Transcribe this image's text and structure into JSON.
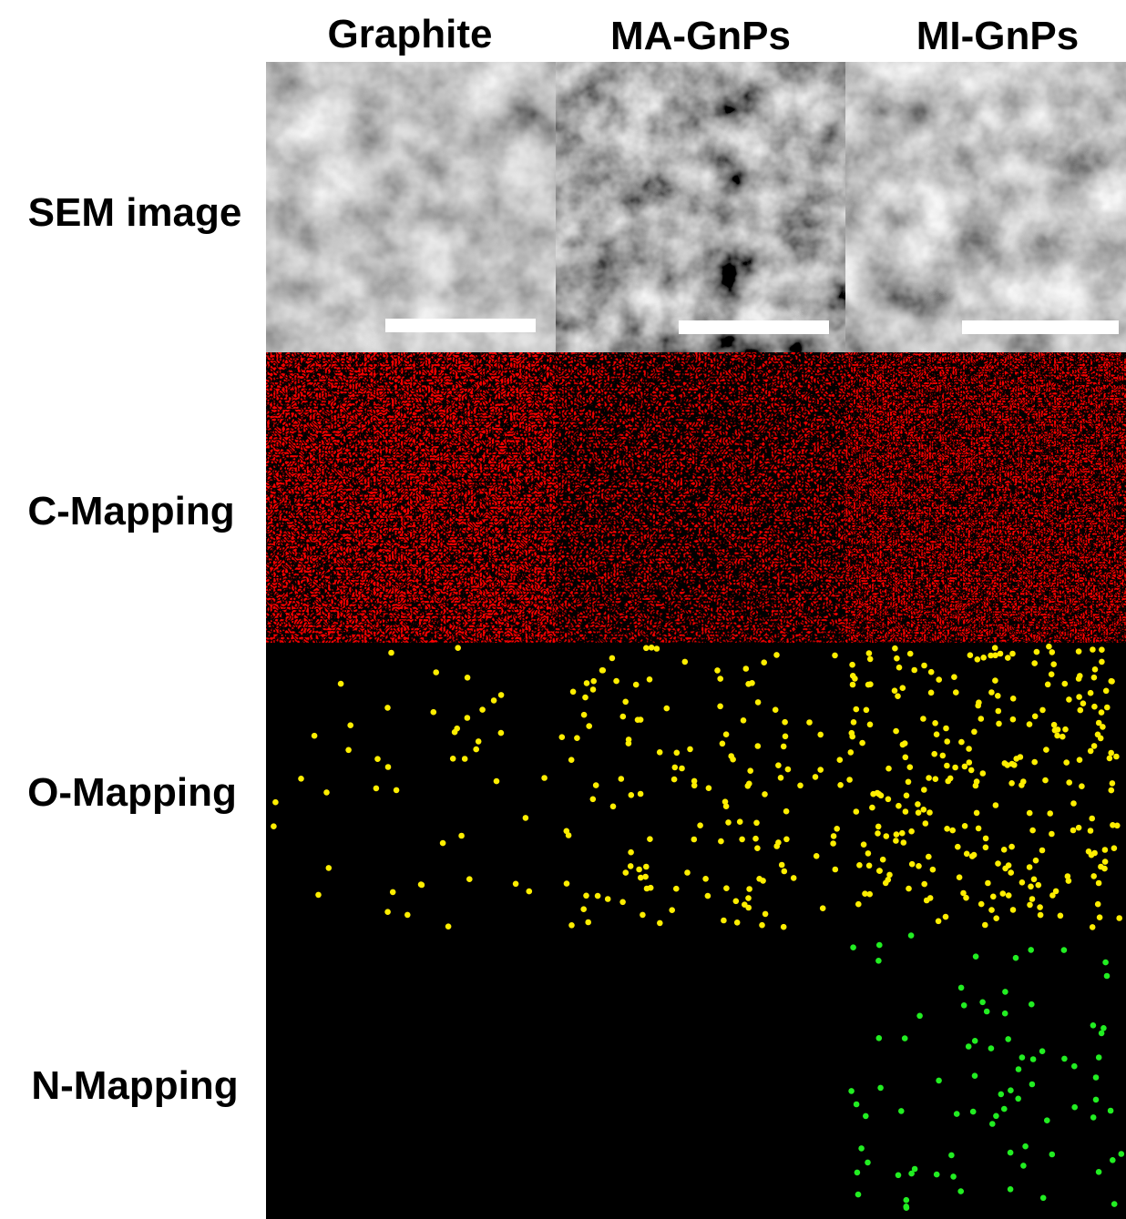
{
  "columns": [
    "Graphite",
    "MA-GnPs",
    "MI-GnPs"
  ],
  "rows": [
    "SEM image",
    "C-Mapping",
    "O-Mapping",
    "N-Mapping"
  ]
}
